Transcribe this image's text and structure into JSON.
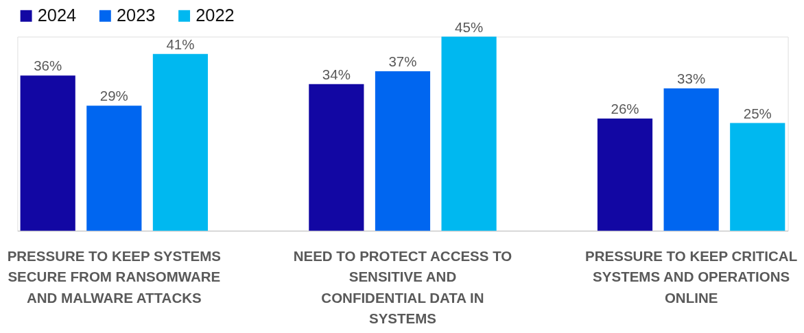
{
  "chart_data": {
    "type": "bar",
    "categories": [
      "PRESSURE TO KEEP SYSTEMS SECURE FROM RANSOMWARE AND MALWARE ATTACKS",
      "NEED TO PROTECT ACCESS TO SENSITIVE AND CONFIDENTIAL DATA IN SYSTEMS",
      "PRESSURE TO KEEP CRITICAL SYSTEMS AND OPERATIONS ONLINE"
    ],
    "series": [
      {
        "name": "2024",
        "color": "#1207a3",
        "values": [
          36,
          34,
          26
        ],
        "value_labels": [
          "36%",
          "34%",
          "26%"
        ]
      },
      {
        "name": "2023",
        "color": "#0066f0",
        "values": [
          29,
          37,
          33
        ],
        "value_labels": [
          "29%",
          "37%",
          "33%"
        ]
      },
      {
        "name": "2022",
        "color": "#00b8f0",
        "values": [
          41,
          45,
          25
        ],
        "value_labels": [
          "41%",
          "45%",
          "25%"
        ]
      }
    ],
    "legend": "top left"
  }
}
